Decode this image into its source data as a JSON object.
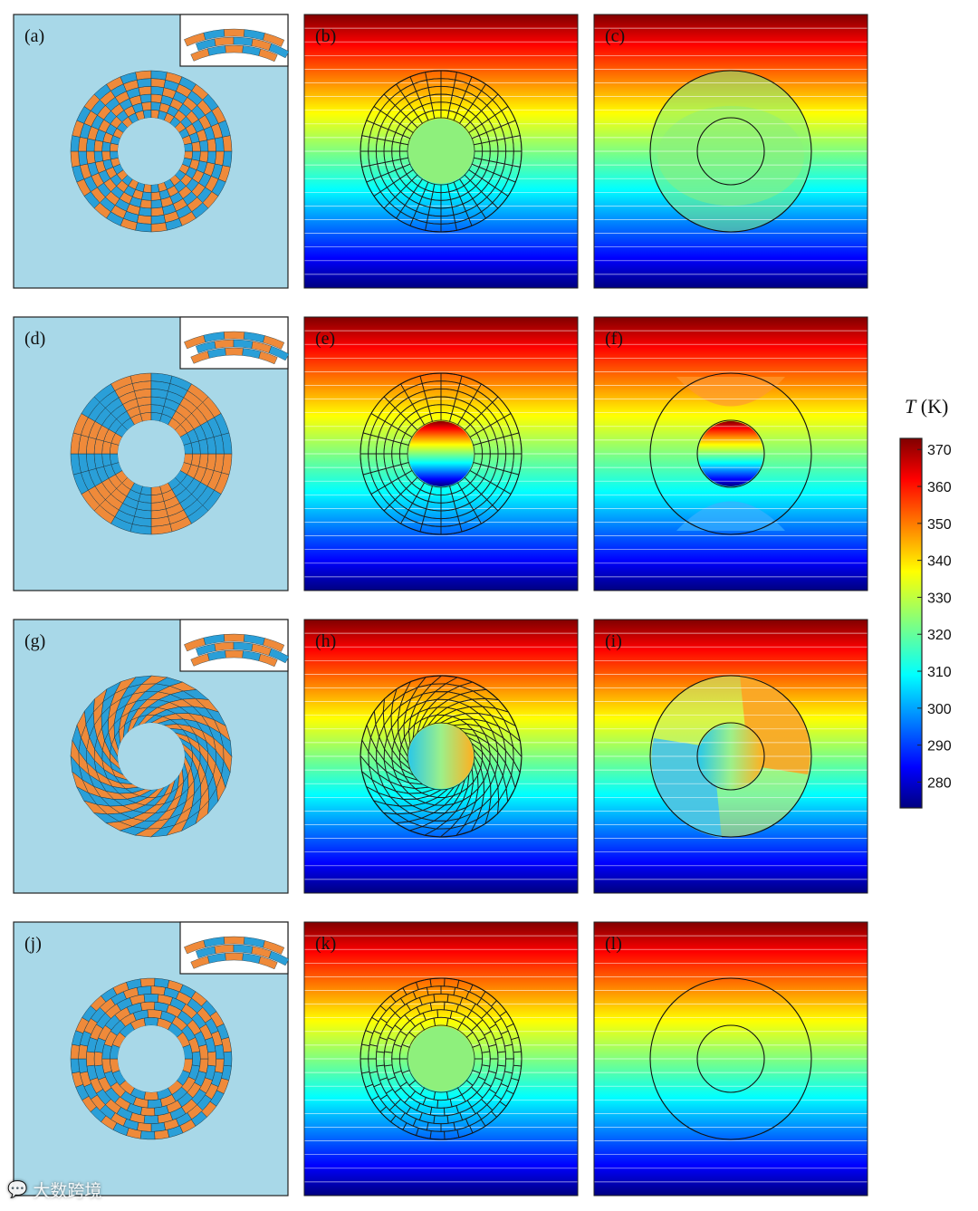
{
  "rows": [
    {
      "design": "concentric",
      "labels": {
        "structure": "(a)",
        "field": "(b)",
        "effective": "(c)"
      },
      "effective": "uniform-cloak"
    },
    {
      "design": "radial-sectors",
      "labels": {
        "structure": "(d)",
        "field": "(e)",
        "effective": "(f)"
      },
      "effective": "concentrator"
    },
    {
      "design": "spiral",
      "labels": {
        "structure": "(g)",
        "field": "(h)",
        "effective": "(i)"
      },
      "effective": "rotator"
    },
    {
      "design": "brick-ring",
      "labels": {
        "structure": "(j)",
        "field": "(k)",
        "effective": "(l)"
      },
      "effective": "invisible"
    }
  ],
  "colors": {
    "background_panel": "#a8d8e8",
    "material_a": "#ef8a3a",
    "material_b": "#2a9fd8",
    "line": "#333333"
  },
  "colorbar": {
    "title_symbol": "T",
    "title_unit": " (K)",
    "min": 273,
    "max": 373,
    "ticks": [
      "370",
      "360",
      "350",
      "340",
      "330",
      "320",
      "310",
      "300",
      "290",
      "280"
    ],
    "tick_values": [
      370,
      360,
      350,
      340,
      330,
      320,
      310,
      300,
      290,
      280
    ]
  },
  "watermark": {
    "icon": "wechat-logo-icon",
    "text": "大数跨境"
  }
}
